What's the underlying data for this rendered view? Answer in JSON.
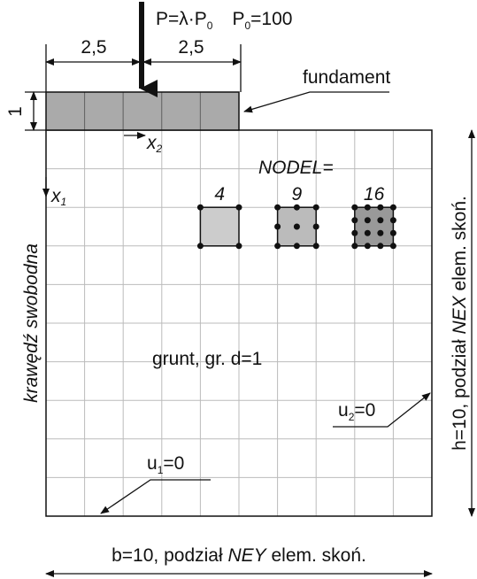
{
  "load": {
    "label": [
      "P=λ·P",
      "0"
    ],
    "reference": [
      "P",
      "0",
      "=100"
    ]
  },
  "dimensions": {
    "left_half": "2,5",
    "right_half": "2,5",
    "thickness": "1"
  },
  "foundation": "fundament",
  "axes": {
    "x2": [
      "x",
      "2"
    ],
    "x1": [
      "x",
      "1"
    ]
  },
  "elements": {
    "title": "NODEL=",
    "types": [
      "4",
      "9",
      "16"
    ]
  },
  "free_edge": "krawędź swobodna",
  "soil": "grunt, gr. d=1",
  "boundary": {
    "u2": [
      "u",
      "2",
      "=0"
    ],
    "u1": [
      "u",
      "1",
      "=0"
    ]
  },
  "height": [
    "h=10, podział ",
    "NEX",
    " elem. skoń."
  ],
  "width": [
    "b=10, podział ",
    "NEY",
    " elem. skoń."
  ]
}
